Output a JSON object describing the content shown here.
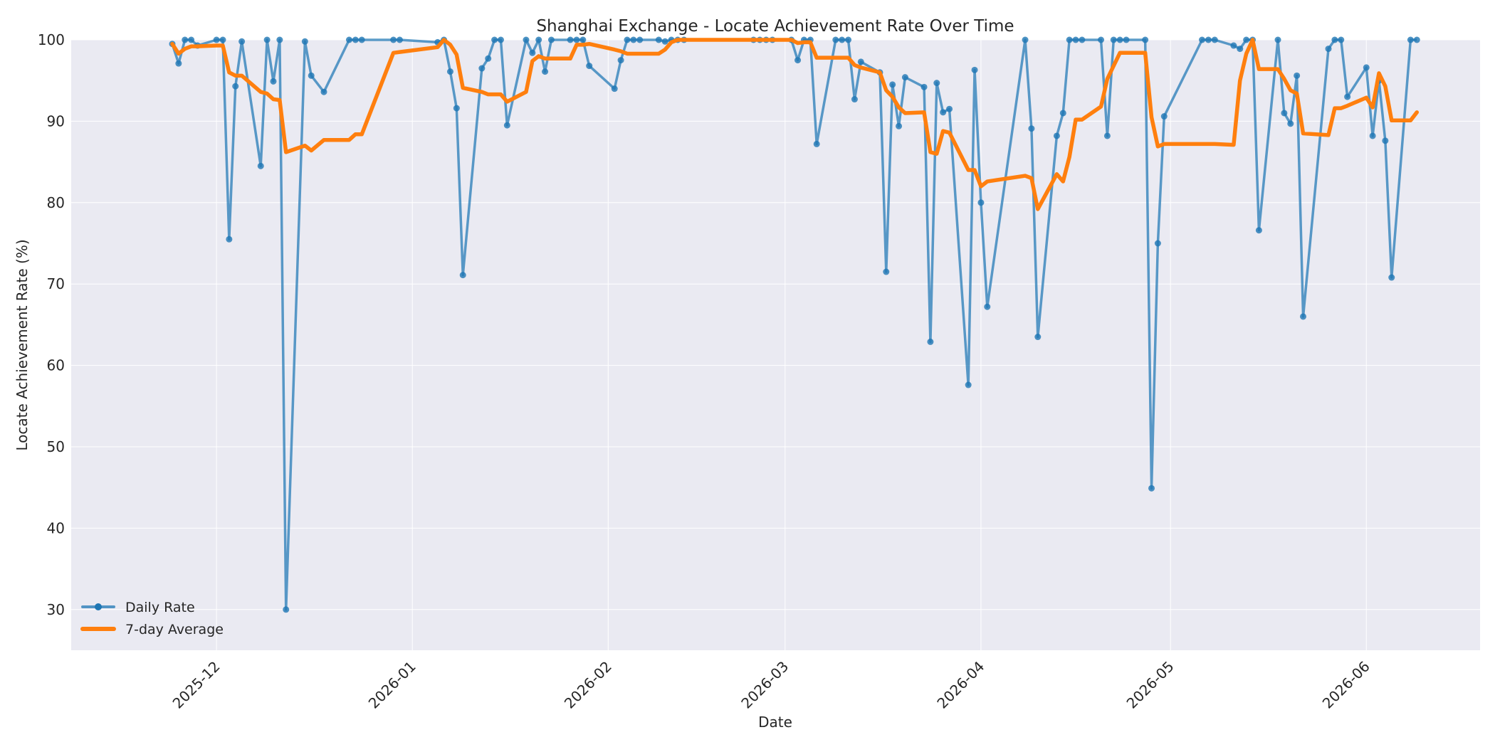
{
  "chart_data": {
    "type": "line",
    "title": "Shanghai Exchange - Locate Achievement Rate Over Time",
    "xlabel": "Date",
    "ylabel": "Locate Achievement Rate (%)",
    "ylim": [
      25,
      100
    ],
    "xlim": [
      "2025-11-08",
      "2026-06-19"
    ],
    "yticks": [
      30,
      40,
      50,
      60,
      70,
      80,
      90,
      100
    ],
    "xticks": [
      {
        "date": "2025-12-01",
        "label": "2025-12"
      },
      {
        "date": "2026-01-01",
        "label": "2026-01"
      },
      {
        "date": "2026-02-01",
        "label": "2026-02"
      },
      {
        "date": "2026-03-01",
        "label": "2026-03"
      },
      {
        "date": "2026-04-01",
        "label": "2026-04"
      },
      {
        "date": "2026-05-01",
        "label": "2026-05"
      },
      {
        "date": "2026-06-01",
        "label": "2026-06"
      }
    ],
    "grid": true,
    "legend_position": "lower-left",
    "colors": {
      "daily": "#1f77b4",
      "average": "#ff7f0e",
      "background": "#eaeaf2",
      "grid": "#ffffff"
    },
    "series": [
      {
        "name": "Daily Rate",
        "style": "line-with-markers",
        "points": [
          [
            "2025-11-24",
            99.5
          ],
          [
            "2025-11-25",
            97.1
          ],
          [
            "2025-11-26",
            100
          ],
          [
            "2025-11-27",
            100
          ],
          [
            "2025-11-28",
            99.3
          ],
          [
            "2025-12-01",
            100
          ],
          [
            "2025-12-02",
            100
          ],
          [
            "2025-12-03",
            75.5
          ],
          [
            "2025-12-04",
            94.3
          ],
          [
            "2025-12-05",
            99.8
          ],
          [
            "2025-12-08",
            84.5
          ],
          [
            "2025-12-09",
            100
          ],
          [
            "2025-12-10",
            94.9
          ],
          [
            "2025-12-11",
            100
          ],
          [
            "2025-12-12",
            30.0
          ],
          [
            "2025-12-15",
            99.8
          ],
          [
            "2025-12-16",
            95.6
          ],
          [
            "2025-12-18",
            93.6
          ],
          [
            "2025-12-22",
            100
          ],
          [
            "2025-12-23",
            100
          ],
          [
            "2025-12-24",
            100
          ],
          [
            "2025-12-29",
            100
          ],
          [
            "2025-12-30",
            100
          ],
          [
            "2026-01-05",
            99.7
          ],
          [
            "2026-01-06",
            100
          ],
          [
            "2026-01-07",
            96.1
          ],
          [
            "2026-01-08",
            91.6
          ],
          [
            "2026-01-09",
            71.1
          ],
          [
            "2026-01-12",
            96.5
          ],
          [
            "2026-01-13",
            97.7
          ],
          [
            "2026-01-14",
            100
          ],
          [
            "2026-01-15",
            100
          ],
          [
            "2026-01-16",
            89.5
          ],
          [
            "2026-01-19",
            100
          ],
          [
            "2026-01-20",
            98.4
          ],
          [
            "2026-01-21",
            100
          ],
          [
            "2026-01-22",
            96.1
          ],
          [
            "2026-01-23",
            100
          ],
          [
            "2026-01-26",
            100
          ],
          [
            "2026-01-27",
            100
          ],
          [
            "2026-01-28",
            100
          ],
          [
            "2026-01-29",
            96.8
          ],
          [
            "2026-02-02",
            94.0
          ],
          [
            "2026-02-03",
            97.5
          ],
          [
            "2026-02-04",
            100
          ],
          [
            "2026-02-05",
            100
          ],
          [
            "2026-02-06",
            100
          ],
          [
            "2026-02-09",
            100
          ],
          [
            "2026-02-10",
            99.8
          ],
          [
            "2026-02-11",
            100
          ],
          [
            "2026-02-12",
            100
          ],
          [
            "2026-02-13",
            100
          ],
          [
            "2026-02-24",
            100
          ],
          [
            "2026-02-25",
            100
          ],
          [
            "2026-02-26",
            100
          ],
          [
            "2026-02-27",
            100
          ],
          [
            "2026-03-02",
            100
          ],
          [
            "2026-03-03",
            97.5
          ],
          [
            "2026-03-04",
            100
          ],
          [
            "2026-03-05",
            100
          ],
          [
            "2026-03-06",
            87.2
          ],
          [
            "2026-03-09",
            100
          ],
          [
            "2026-03-10",
            100
          ],
          [
            "2026-03-11",
            100
          ],
          [
            "2026-03-12",
            92.7
          ],
          [
            "2026-03-13",
            97.3
          ],
          [
            "2026-03-16",
            96.0
          ],
          [
            "2026-03-17",
            71.5
          ],
          [
            "2026-03-18",
            94.5
          ],
          [
            "2026-03-19",
            89.4
          ],
          [
            "2026-03-20",
            95.4
          ],
          [
            "2026-03-23",
            94.2
          ],
          [
            "2026-03-24",
            62.9
          ],
          [
            "2026-03-25",
            94.7
          ],
          [
            "2026-03-26",
            91.1
          ],
          [
            "2026-03-27",
            91.5
          ],
          [
            "2026-03-30",
            57.6
          ],
          [
            "2026-03-31",
            96.3
          ],
          [
            "2026-04-01",
            80.0
          ],
          [
            "2026-04-02",
            67.2
          ],
          [
            "2026-04-08",
            100
          ],
          [
            "2026-04-09",
            89.1
          ],
          [
            "2026-04-10",
            63.5
          ],
          [
            "2026-04-13",
            88.2
          ],
          [
            "2026-04-14",
            91.0
          ],
          [
            "2026-04-15",
            100
          ],
          [
            "2026-04-16",
            100
          ],
          [
            "2026-04-17",
            100
          ],
          [
            "2026-04-20",
            100
          ],
          [
            "2026-04-21",
            88.2
          ],
          [
            "2026-04-22",
            100
          ],
          [
            "2026-04-23",
            100
          ],
          [
            "2026-04-24",
            100
          ],
          [
            "2026-04-27",
            100
          ],
          [
            "2026-04-28",
            44.9
          ],
          [
            "2026-04-29",
            75.0
          ],
          [
            "2026-04-30",
            90.6
          ],
          [
            "2026-05-06",
            100
          ],
          [
            "2026-05-07",
            100
          ],
          [
            "2026-05-08",
            100
          ],
          [
            "2026-05-11",
            99.3
          ],
          [
            "2026-05-12",
            98.9
          ],
          [
            "2026-05-13",
            100
          ],
          [
            "2026-05-14",
            100
          ],
          [
            "2026-05-15",
            76.6
          ],
          [
            "2026-05-18",
            100
          ],
          [
            "2026-05-19",
            91.0
          ],
          [
            "2026-05-20",
            89.7
          ],
          [
            "2026-05-21",
            95.6
          ],
          [
            "2026-05-22",
            66.0
          ],
          [
            "2026-05-26",
            98.9
          ],
          [
            "2026-05-27",
            100
          ],
          [
            "2026-05-28",
            100
          ],
          [
            "2026-05-29",
            93.0
          ],
          [
            "2026-06-01",
            96.6
          ],
          [
            "2026-06-02",
            88.2
          ],
          [
            "2026-06-03",
            95.0
          ],
          [
            "2026-06-04",
            87.6
          ],
          [
            "2026-06-05",
            70.8
          ],
          [
            "2026-06-08",
            100
          ],
          [
            "2026-06-09",
            100
          ]
        ]
      },
      {
        "name": "7-day Average",
        "style": "line",
        "points": [
          [
            "2025-11-24",
            99.5
          ],
          [
            "2025-11-25",
            98.3
          ],
          [
            "2025-11-26",
            98.9
          ],
          [
            "2025-11-27",
            99.2
          ],
          [
            "2025-11-28",
            99.2
          ],
          [
            "2025-12-01",
            99.3
          ],
          [
            "2025-12-02",
            99.3
          ],
          [
            "2025-12-03",
            96.0
          ],
          [
            "2025-12-04",
            95.6
          ],
          [
            "2025-12-05",
            95.6
          ],
          [
            "2025-12-08",
            93.6
          ],
          [
            "2025-12-09",
            93.4
          ],
          [
            "2025-12-10",
            92.7
          ],
          [
            "2025-12-11",
            92.6
          ],
          [
            "2025-12-12",
            86.2
          ],
          [
            "2025-12-15",
            87.0
          ],
          [
            "2025-12-16",
            86.4
          ],
          [
            "2025-12-18",
            87.7
          ],
          [
            "2025-12-22",
            87.7
          ],
          [
            "2025-12-23",
            88.4
          ],
          [
            "2025-12-24",
            88.4
          ],
          [
            "2025-12-29",
            98.4
          ],
          [
            "2025-12-30",
            98.5
          ],
          [
            "2026-01-05",
            99.1
          ],
          [
            "2026-01-06",
            100
          ],
          [
            "2026-01-07",
            99.4
          ],
          [
            "2026-01-08",
            98.2
          ],
          [
            "2026-01-09",
            94.1
          ],
          [
            "2026-01-12",
            93.6
          ],
          [
            "2026-01-13",
            93.3
          ],
          [
            "2026-01-14",
            93.3
          ],
          [
            "2026-01-15",
            93.3
          ],
          [
            "2026-01-16",
            92.4
          ],
          [
            "2026-01-19",
            93.6
          ],
          [
            "2026-01-20",
            97.4
          ],
          [
            "2026-01-21",
            98.0
          ],
          [
            "2026-01-22",
            97.7
          ],
          [
            "2026-01-23",
            97.7
          ],
          [
            "2026-01-26",
            97.7
          ],
          [
            "2026-01-27",
            99.4
          ],
          [
            "2026-01-28",
            99.4
          ],
          [
            "2026-01-29",
            99.5
          ],
          [
            "2026-02-02",
            98.8
          ],
          [
            "2026-02-03",
            98.6
          ],
          [
            "2026-02-04",
            98.3
          ],
          [
            "2026-02-05",
            98.3
          ],
          [
            "2026-02-06",
            98.3
          ],
          [
            "2026-02-09",
            98.3
          ],
          [
            "2026-02-10",
            98.8
          ],
          [
            "2026-02-11",
            99.7
          ],
          [
            "2026-02-12",
            100
          ],
          [
            "2026-02-13",
            100
          ],
          [
            "2026-02-24",
            100
          ],
          [
            "2026-02-25",
            100
          ],
          [
            "2026-02-26",
            100
          ],
          [
            "2026-02-27",
            100
          ],
          [
            "2026-03-02",
            100
          ],
          [
            "2026-03-03",
            99.6
          ],
          [
            "2026-03-04",
            99.7
          ],
          [
            "2026-03-05",
            99.7
          ],
          [
            "2026-03-06",
            97.8
          ],
          [
            "2026-03-09",
            97.8
          ],
          [
            "2026-03-10",
            97.8
          ],
          [
            "2026-03-11",
            97.8
          ],
          [
            "2026-03-12",
            96.9
          ],
          [
            "2026-03-13",
            96.6
          ],
          [
            "2026-03-16",
            96.0
          ],
          [
            "2026-03-17",
            93.8
          ],
          [
            "2026-03-18",
            93.0
          ],
          [
            "2026-03-19",
            91.7
          ],
          [
            "2026-03-20",
            91.0
          ],
          [
            "2026-03-23",
            91.1
          ],
          [
            "2026-03-24",
            86.2
          ],
          [
            "2026-03-25",
            86.0
          ],
          [
            "2026-03-26",
            88.8
          ],
          [
            "2026-03-27",
            88.6
          ],
          [
            "2026-03-30",
            84.0
          ],
          [
            "2026-03-31",
            84.0
          ],
          [
            "2026-04-01",
            82.0
          ],
          [
            "2026-04-02",
            82.6
          ],
          [
            "2026-04-08",
            83.3
          ],
          [
            "2026-04-09",
            83.0
          ],
          [
            "2026-04-10",
            79.2
          ],
          [
            "2026-04-13",
            83.5
          ],
          [
            "2026-04-14",
            82.6
          ],
          [
            "2026-04-15",
            85.6
          ],
          [
            "2026-04-16",
            90.2
          ],
          [
            "2026-04-17",
            90.2
          ],
          [
            "2026-04-20",
            91.8
          ],
          [
            "2026-04-21",
            95.2
          ],
          [
            "2026-04-22",
            96.8
          ],
          [
            "2026-04-23",
            98.4
          ],
          [
            "2026-04-24",
            98.4
          ],
          [
            "2026-04-27",
            98.4
          ],
          [
            "2026-04-28",
            90.5
          ],
          [
            "2026-04-29",
            86.9
          ],
          [
            "2026-04-30",
            87.2
          ],
          [
            "2026-05-06",
            87.2
          ],
          [
            "2026-05-07",
            87.2
          ],
          [
            "2026-05-08",
            87.2
          ],
          [
            "2026-05-11",
            87.1
          ],
          [
            "2026-05-12",
            95.0
          ],
          [
            "2026-05-13",
            98.3
          ],
          [
            "2026-05-14",
            100
          ],
          [
            "2026-05-15",
            96.4
          ],
          [
            "2026-05-18",
            96.4
          ],
          [
            "2026-05-19",
            95.2
          ],
          [
            "2026-05-20",
            93.8
          ],
          [
            "2026-05-21",
            93.4
          ],
          [
            "2026-05-22",
            88.5
          ],
          [
            "2026-05-26",
            88.3
          ],
          [
            "2026-05-27",
            91.6
          ],
          [
            "2026-05-28",
            91.6
          ],
          [
            "2026-05-29",
            91.9
          ],
          [
            "2026-06-01",
            92.9
          ],
          [
            "2026-06-02",
            91.7
          ],
          [
            "2026-06-03",
            95.9
          ],
          [
            "2026-06-04",
            94.3
          ],
          [
            "2026-06-05",
            90.1
          ],
          [
            "2026-06-08",
            90.1
          ],
          [
            "2026-06-09",
            91.1
          ]
        ]
      }
    ]
  }
}
